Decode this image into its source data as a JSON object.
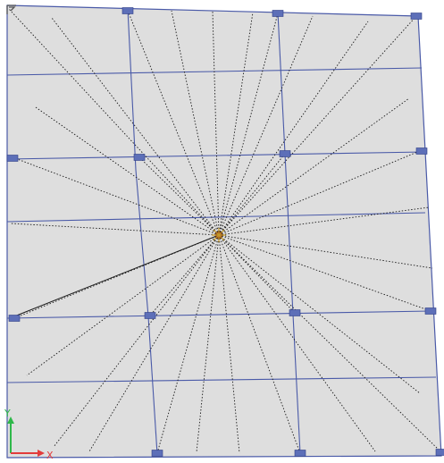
{
  "view": {
    "background": "#ffffff",
    "panel_fill": "#dedede",
    "grid_color": "#4a5aa8",
    "node_color": "#5d6fb8",
    "link_color": "#1a1a1a",
    "center_color": "#8b3a1a"
  },
  "axes": {
    "x_label": "X",
    "y_label": "Y",
    "x_color": "#e23b3b",
    "y_color": "#2fb84a"
  },
  "corner_icon": "frame-corner-icon"
}
